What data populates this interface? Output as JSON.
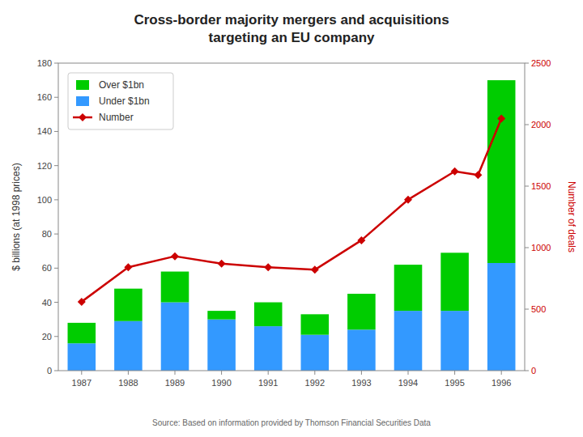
{
  "chart_data": {
    "type": "bar",
    "title": "Cross-border majority mergers and acquisitions",
    "subtitle": "targeting an EU company",
    "categories": [
      "1987",
      "1988",
      "1989",
      "1990",
      "1991",
      "1992",
      "1993",
      "1994",
      "1995",
      "1996"
    ],
    "series": [
      {
        "name": "Under $1bn",
        "color": "#3399FF",
        "values": [
          16,
          29,
          40,
          30,
          26,
          21,
          24,
          35,
          35,
          63
        ]
      },
      {
        "name": "Over $1bn",
        "color": "#00CC00",
        "values": [
          12,
          19,
          18,
          5,
          14,
          12,
          21,
          27,
          34,
          107
        ]
      },
      {
        "name": "Number",
        "type": "line",
        "axis": "y2",
        "color": "#CC0000",
        "marker": "diamond",
        "x": [
          0,
          1,
          2,
          3,
          4,
          5,
          6,
          7,
          8,
          8.5,
          9
        ],
        "values": [
          560,
          840,
          930,
          870,
          840,
          820,
          1060,
          1390,
          1620,
          1590,
          2050
        ]
      }
    ],
    "stacked": true,
    "ylim": [
      0,
      180
    ],
    "yticks": [
      0,
      20,
      40,
      60,
      80,
      100,
      120,
      140,
      160,
      180
    ],
    "y2lim": [
      0,
      2500
    ],
    "y2ticks": [
      0,
      500,
      1000,
      1500,
      2000,
      2500
    ],
    "ylabel": "$ billions (at 1998 prices)",
    "y2label": "Number of deals",
    "legend": "upper left",
    "grid": false,
    "annotations": [
      "Source: Based on information provided by Thomson Financial Securities Data"
    ]
  }
}
